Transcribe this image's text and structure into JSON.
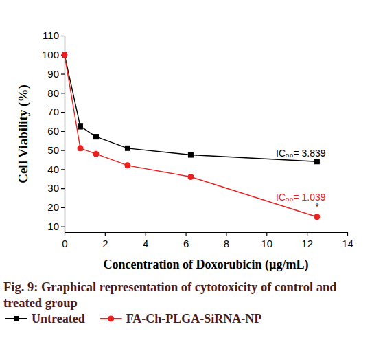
{
  "chart_data": {
    "type": "line",
    "title": "Fig. 9: Graphical representation of cytotoxicity of control and treated group",
    "x_label": "Concentration of Doxorubicin (µg/mL)",
    "y_label": "Cell Viability (%)",
    "x": [
      0,
      0.78,
      1.5625,
      3.125,
      6.25,
      12.5
    ],
    "series": [
      {
        "name": "Untreated",
        "color": "#000000",
        "marker": "square",
        "values": [
          100,
          62.5,
          57,
          51,
          47.5,
          44
        ],
        "errors": [
          0,
          1.5,
          1.2,
          0.6,
          0.5,
          0.5
        ]
      },
      {
        "name": "FA-Ch-PLGA-SiRNA-NP",
        "color": "#e8211f",
        "marker": "circle",
        "values": [
          100,
          51,
          48,
          42,
          36,
          15
        ],
        "errors": [
          0,
          1.2,
          0.6,
          1,
          0.7,
          0.6
        ]
      }
    ],
    "xlim": [
      0,
      14
    ],
    "ylim": [
      7,
      110
    ],
    "xticks": [
      0,
      2,
      4,
      6,
      8,
      10,
      12,
      14
    ],
    "yticks": [
      10,
      20,
      30,
      40,
      50,
      60,
      70,
      80,
      90,
      100,
      110
    ],
    "annotations": [
      {
        "text": "IC₅₀= 3.839",
        "x": 11.7,
        "y": 46.5,
        "color": "#000000"
      },
      {
        "text": "IC₅₀= 1.039",
        "x": 11.7,
        "y": 23.5,
        "color": "#e8211f"
      },
      {
        "text": "*",
        "x": 12.5,
        "y": 18.5,
        "color": "#000000"
      }
    ],
    "legend": "bottom"
  }
}
